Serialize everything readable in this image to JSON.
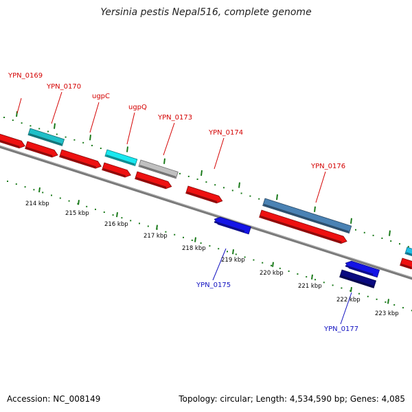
{
  "title": "Yersinia pestis Nepal516, complete genome",
  "footer": {
    "accession": "Accession: NC_008149",
    "summary": "Topology: circular; Length: 4,534,590 bp; Genes: 4,085"
  },
  "colors": {
    "backbone": "#7a7a7a",
    "tick": "#1a7a1a",
    "forward_label": "#d40000",
    "reverse_label": "#1010c0"
  },
  "scale_labels": [
    "214 kbp",
    "215 kbp",
    "216 kbp",
    "217 kbp",
    "218 kbp",
    "219 kbp",
    "220 kbp",
    "221 kbp",
    "222 kbp",
    "223 kbp"
  ],
  "genes": [
    {
      "id": "g_left",
      "label": "",
      "color": "#ee1111"
    },
    {
      "id": "YPN_0169",
      "label": "YPN_0169",
      "color": "#ee1111"
    },
    {
      "id": "YPN_0170",
      "label": "YPN_0170",
      "color": "#20c0c8"
    },
    {
      "id": "ugpC",
      "label": "ugpC",
      "color": "#ee1111"
    },
    {
      "id": "ugpQ",
      "label": "ugpQ",
      "color": "#18e8f0"
    },
    {
      "id": "g_small",
      "label": "",
      "color": "#ee1111"
    },
    {
      "id": "YPN_0173",
      "label": "YPN_0173",
      "color": "#c0c0c0"
    },
    {
      "id": "g_mid",
      "label": "",
      "color": "#ee1111"
    },
    {
      "id": "YPN_0174",
      "label": "YPN_0174",
      "color": "#ee1111"
    },
    {
      "id": "YPN_0175",
      "label": "YPN_0175",
      "color": "#1414e6"
    },
    {
      "id": "YPN_0176",
      "label": "YPN_0176",
      "color": "#4a82b4"
    },
    {
      "id": "g_long",
      "label": "",
      "color": "#ee1111"
    },
    {
      "id": "g_rev1",
      "label": "",
      "color": "#1414e6"
    },
    {
      "id": "YPN_0177",
      "label": "YPN_0177",
      "color": "#0a0a80"
    },
    {
      "id": "g_edge_cyan",
      "label": "",
      "color": "#20c0e8"
    },
    {
      "id": "g_edge_red",
      "label": "",
      "color": "#ee1111"
    }
  ]
}
